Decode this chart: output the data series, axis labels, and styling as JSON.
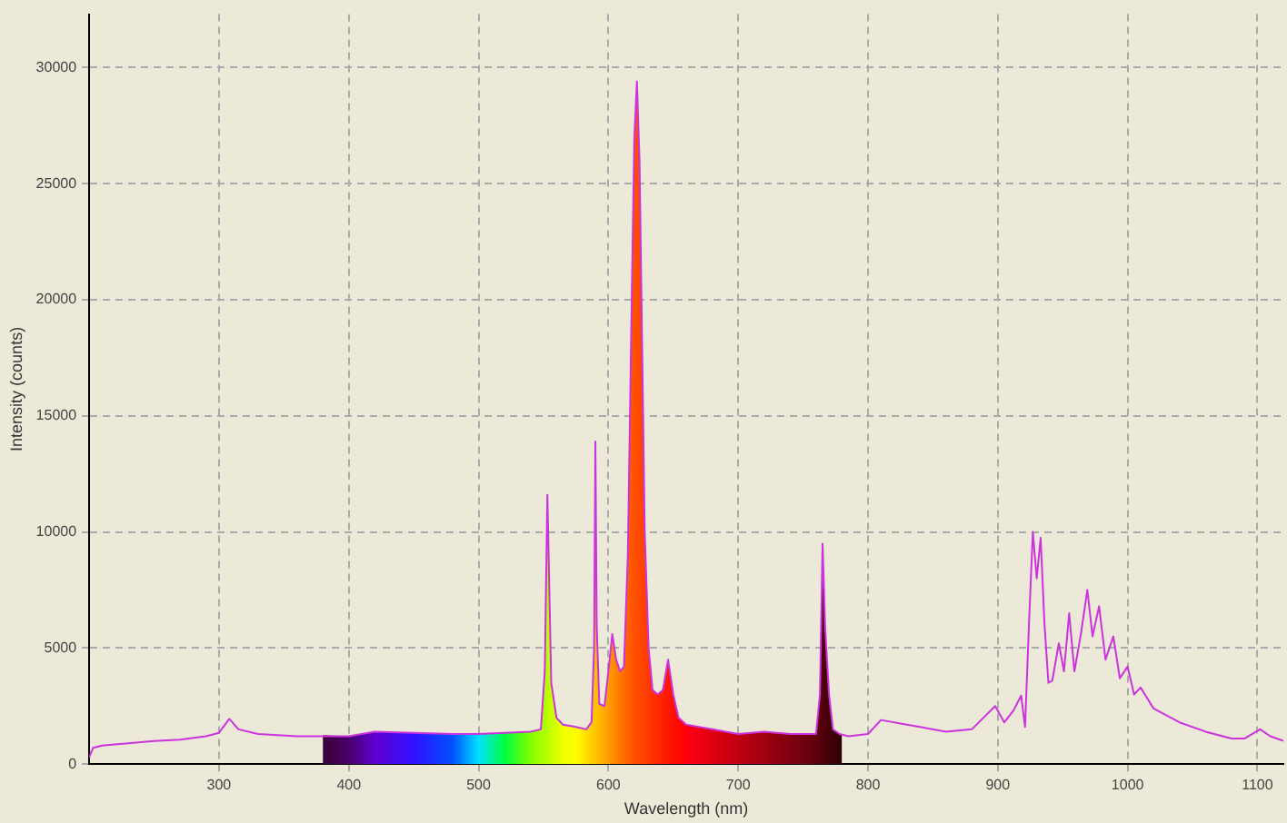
{
  "chart_data": {
    "type": "line",
    "xlabel": "Wavelength (nm)",
    "ylabel": "Intensity (counts)",
    "xlim": [
      200,
      1120
    ],
    "ylim": [
      0,
      32300
    ],
    "xticks": [
      300,
      400,
      500,
      600,
      700,
      800,
      900,
      1000,
      1100
    ],
    "yticks": [
      0,
      5000,
      10000,
      15000,
      20000,
      25000,
      30000
    ],
    "grid": true,
    "legend": false,
    "marker": "none",
    "series": [
      {
        "type": "area",
        "colors": [
          "#3a0038",
          "#48006a",
          "#6000d0",
          "#3010ff",
          "#0050ff",
          "#00e0ff",
          "#00ff40",
          "#80ff00",
          "#a8ff00",
          "#b0ff00",
          "#b8ff00",
          "#c8ff00",
          "#d8ff00",
          "#eeff00",
          "#ffff00",
          "#ffe000",
          "#ffd000",
          "#ffc800",
          "#ffc400",
          "#ffc000",
          "#ffb800",
          "#ffa800",
          "#ff9c00",
          "#ff9000",
          "#ff8400",
          "#ff7800",
          "#ff6c00",
          "#ff6000",
          "#ff5800",
          "#ff5000",
          "#ff4c00",
          "#ff4800",
          "#ff4400",
          "#ff4000",
          "#ff3800",
          "#ff3000",
          "#ff2800",
          "#ff2000",
          "#ff1800",
          "#ff1000",
          "#ff0800",
          "#ff0010",
          "#e00010",
          "#c00010",
          "#a00010",
          "#800010",
          "#60000c",
          "#58000a",
          "#50000a",
          "#4a0008",
          "#440008",
          "#3c0008",
          "#340008",
          "#300008"
        ],
        "x": [
          380,
          400,
          420,
          450,
          480,
          500,
          520,
          540,
          548,
          551,
          553,
          556,
          560,
          565,
          575,
          583,
          587,
          589,
          590,
          591,
          593,
          597,
          600,
          603,
          606,
          609,
          612,
          615,
          618,
          620,
          622,
          624,
          626,
          628,
          631,
          634,
          638,
          642,
          646,
          650,
          654,
          660,
          680,
          700,
          720,
          740,
          760,
          763,
          765,
          767,
          770,
          773,
          778,
          780
        ],
        "values": [
          1250,
          1200,
          1400,
          1350,
          1300,
          1300,
          1350,
          1400,
          1500,
          4000,
          11600,
          3500,
          2000,
          1700,
          1600,
          1500,
          1800,
          5000,
          13900,
          6000,
          2600,
          2500,
          4000,
          5600,
          4500,
          4000,
          4200,
          9000,
          20000,
          27000,
          29400,
          26000,
          18000,
          10000,
          5000,
          3200,
          3000,
          3200,
          4500,
          3000,
          2000,
          1700,
          1500,
          1300,
          1400,
          1300,
          1300,
          3000,
          9500,
          5900,
          3000,
          1500,
          1300,
          1300
        ]
      },
      {
        "color": "#cc33dd",
        "x": [
          200,
          203,
          210,
          230,
          250,
          270,
          290,
          300,
          308,
          315,
          330,
          360,
          400,
          420,
          450,
          480,
          500,
          520,
          540,
          548,
          551,
          553,
          556,
          560,
          565,
          575,
          583,
          587,
          589,
          590,
          591,
          593,
          597,
          600,
          603,
          606,
          609,
          612,
          615,
          618,
          620,
          622,
          624,
          626,
          628,
          631,
          634,
          638,
          642,
          646,
          650,
          654,
          660,
          680,
          700,
          720,
          740,
          760,
          763,
          765,
          767,
          770,
          773,
          778,
          785,
          800,
          810,
          830,
          860,
          880,
          898,
          905,
          912,
          918,
          921,
          924,
          927,
          930,
          933,
          936,
          939,
          942,
          947,
          951,
          955,
          959,
          964,
          969,
          973,
          978,
          983,
          989,
          994,
          1000,
          1005,
          1010,
          1020,
          1040,
          1060,
          1080,
          1090,
          1102,
          1110,
          1120
        ],
        "values": [
          300,
          700,
          800,
          900,
          1000,
          1050,
          1200,
          1350,
          1950,
          1500,
          1300,
          1200,
          1200,
          1400,
          1350,
          1300,
          1300,
          1350,
          1400,
          1500,
          4000,
          11600,
          3500,
          2000,
          1700,
          1600,
          1500,
          1800,
          5000,
          13900,
          6000,
          2600,
          2500,
          4000,
          5600,
          4500,
          4000,
          4200,
          9000,
          20000,
          27000,
          29400,
          26000,
          18000,
          10000,
          5000,
          3200,
          3000,
          3200,
          4500,
          3000,
          2000,
          1700,
          1500,
          1300,
          1400,
          1300,
          1300,
          3000,
          9500,
          5900,
          3000,
          1500,
          1300,
          1200,
          1300,
          1900,
          1700,
          1400,
          1500,
          2500,
          1800,
          2300,
          2950,
          1600,
          6000,
          10000,
          8000,
          9750,
          6000,
          3500,
          3600,
          5200,
          4000,
          6500,
          4000,
          5600,
          7500,
          5500,
          6800,
          4500,
          5500,
          3700,
          4200,
          3000,
          3300,
          2400,
          1800,
          1400,
          1100,
          1100,
          1500,
          1200,
          1000
        ]
      }
    ]
  }
}
